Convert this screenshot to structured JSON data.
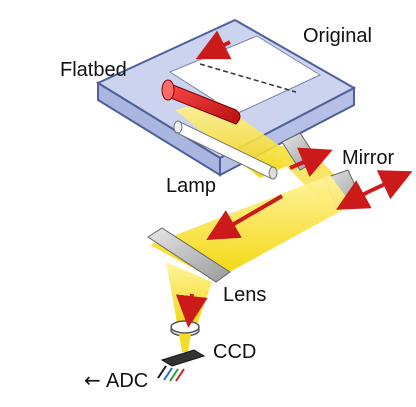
{
  "labels": {
    "original": "Original",
    "flatbed": "Flatbed",
    "mirror": "Mirror",
    "lamp": "Lamp",
    "lens": "Lens",
    "ccd": "CCD",
    "adc": "ADC"
  },
  "icons": {
    "adc_arrow": "left-arrow-icon"
  },
  "colors": {
    "glass": "#c8d2ee",
    "glass_edge": "#4f5f9a",
    "paper": "#ffffff",
    "lamp_red": "#d81818",
    "light_beam": "#f4dc00",
    "arrow_red": "#cc1a1a",
    "mirror_grey": "#b9b9b9"
  }
}
